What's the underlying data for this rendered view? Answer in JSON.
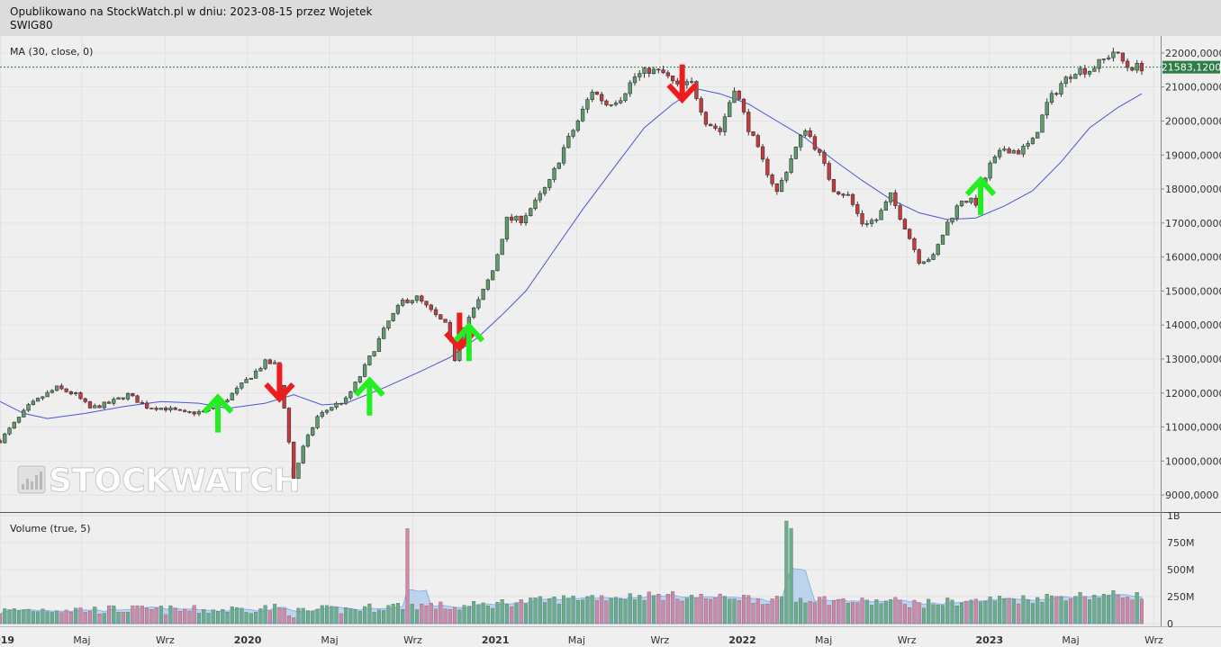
{
  "header": {
    "publish_line": "Opublikowano na StockWatch.pl w dniu: 2023-08-15 przez Wojetek",
    "ticker": "SWIG80"
  },
  "watermark": {
    "text": "STOCKWATCH"
  },
  "price_panel": {
    "indicator_label": "MA (30, close, 0)"
  },
  "volume_panel": {
    "indicator_label": "Volume (true, 5)"
  },
  "colors": {
    "up_candle": "#5e9e6e",
    "down_candle": "#c9393d",
    "ma_line": "#4a55d6",
    "buy_arrow": "#22ee22",
    "sell_arrow": "#ee1c1c",
    "last_price_bg": "#2e7d46",
    "volume_up": "#68b08a",
    "volume_down": "#d487a5",
    "volume_ma_fill": "#a9c7ee"
  },
  "chart_data": {
    "type": "candlestick",
    "instrument": "SWIG80",
    "period": "weekly",
    "price_axis": {
      "min": 8500,
      "max": 22500,
      "ticks": [
        9000,
        10000,
        11000,
        12000,
        13000,
        14000,
        15000,
        16000,
        17000,
        18000,
        19000,
        20000,
        21000,
        22000
      ],
      "tick_labels": [
        "9000,0000",
        "10000,0000",
        "11000,0000",
        "12000,0000",
        "13000,0000",
        "14000,0000",
        "15000,0000",
        "16000,0000",
        "17000,0000",
        "18000,0000",
        "19000,0000",
        "20000,0000",
        "21000,0000",
        "22000,0000"
      ],
      "last_price": 21583.12,
      "last_price_label": "21583,1200"
    },
    "volume_axis": {
      "min": 0,
      "max": 1000,
      "ticks": [
        0,
        250,
        500,
        750,
        1000
      ],
      "tick_labels": [
        "0",
        "250M",
        "500M",
        "750M",
        "1B"
      ]
    },
    "time_axis": {
      "start": "2018-12-31",
      "end": "2023-09-11",
      "ticks": [
        {
          "date": "2019-01-01",
          "label": "2019",
          "major": true
        },
        {
          "date": "2019-05-01",
          "label": "Maj",
          "major": false
        },
        {
          "date": "2019-09-01",
          "label": "Wrz",
          "major": false
        },
        {
          "date": "2020-01-01",
          "label": "2020",
          "major": true
        },
        {
          "date": "2020-05-01",
          "label": "Maj",
          "major": false
        },
        {
          "date": "2020-09-01",
          "label": "Wrz",
          "major": false
        },
        {
          "date": "2021-01-01",
          "label": "2021",
          "major": true
        },
        {
          "date": "2021-05-01",
          "label": "Maj",
          "major": false
        },
        {
          "date": "2021-09-01",
          "label": "Wrz",
          "major": false
        },
        {
          "date": "2022-01-01",
          "label": "2022",
          "major": true
        },
        {
          "date": "2022-05-01",
          "label": "Maj",
          "major": false
        },
        {
          "date": "2022-09-01",
          "label": "Wrz",
          "major": false
        },
        {
          "date": "2023-01-01",
          "label": "2023",
          "major": true
        },
        {
          "date": "2023-05-01",
          "label": "Maj",
          "major": false
        },
        {
          "date": "2023-09-01",
          "label": "Wrz",
          "major": false
        }
      ]
    },
    "close_series": [
      [
        "2018-12-31",
        10600
      ],
      [
        "2019-01-21",
        11100
      ],
      [
        "2019-02-11",
        11600
      ],
      [
        "2019-03-04",
        11900
      ],
      [
        "2019-03-25",
        12150
      ],
      [
        "2019-04-22",
        11950
      ],
      [
        "2019-05-13",
        11550
      ],
      [
        "2019-06-10",
        11700
      ],
      [
        "2019-07-08",
        11950
      ],
      [
        "2019-08-05",
        11600
      ],
      [
        "2019-09-02",
        11550
      ],
      [
        "2019-09-30",
        11400
      ],
      [
        "2019-10-28",
        11450
      ],
      [
        "2019-11-25",
        11700
      ],
      [
        "2019-12-16",
        12100
      ],
      [
        "2020-01-06",
        12500
      ],
      [
        "2020-01-27",
        12900
      ],
      [
        "2020-02-10",
        12850
      ],
      [
        "2020-02-24",
        11600
      ],
      [
        "2020-03-09",
        9500
      ],
      [
        "2020-03-23",
        10400
      ],
      [
        "2020-04-13",
        11300
      ],
      [
        "2020-05-04",
        11600
      ],
      [
        "2020-05-25",
        11800
      ],
      [
        "2020-06-15",
        12500
      ],
      [
        "2020-07-06",
        13300
      ],
      [
        "2020-07-27",
        14100
      ],
      [
        "2020-08-17",
        14700
      ],
      [
        "2020-09-07",
        14800
      ],
      [
        "2020-09-28",
        14400
      ],
      [
        "2020-10-19",
        14000
      ],
      [
        "2020-11-02",
        13000
      ],
      [
        "2020-11-16",
        14000
      ],
      [
        "2020-12-07",
        14700
      ],
      [
        "2020-12-28",
        15600
      ],
      [
        "2021-01-18",
        17100
      ],
      [
        "2021-02-08",
        17100
      ],
      [
        "2021-03-01",
        17600
      ],
      [
        "2021-03-22",
        18200
      ],
      [
        "2021-04-12",
        19200
      ],
      [
        "2021-05-03",
        20000
      ],
      [
        "2021-05-24",
        20900
      ],
      [
        "2021-06-14",
        20500
      ],
      [
        "2021-07-05",
        20700
      ],
      [
        "2021-07-26",
        21300
      ],
      [
        "2021-08-16",
        21500
      ],
      [
        "2021-09-06",
        21400
      ],
      [
        "2021-09-27",
        21000
      ],
      [
        "2021-10-18",
        21100
      ],
      [
        "2021-11-08",
        20000
      ],
      [
        "2021-11-29",
        19700
      ],
      [
        "2021-12-20",
        21000
      ],
      [
        "2022-01-10",
        19800
      ],
      [
        "2022-01-31",
        18800
      ],
      [
        "2022-02-21",
        17900
      ],
      [
        "2022-03-14",
        18900
      ],
      [
        "2022-04-04",
        19800
      ],
      [
        "2022-04-25",
        19000
      ],
      [
        "2022-05-16",
        18000
      ],
      [
        "2022-06-06",
        17800
      ],
      [
        "2022-06-27",
        17000
      ],
      [
        "2022-07-18",
        17100
      ],
      [
        "2022-08-08",
        17800
      ],
      [
        "2022-08-29",
        16900
      ],
      [
        "2022-09-19",
        15900
      ],
      [
        "2022-10-10",
        16000
      ],
      [
        "2022-10-31",
        17000
      ],
      [
        "2022-11-21",
        17700
      ],
      [
        "2022-12-12",
        17600
      ],
      [
        "2023-01-02",
        18700
      ],
      [
        "2023-01-23",
        19200
      ],
      [
        "2023-02-13",
        19100
      ],
      [
        "2023-03-06",
        19400
      ],
      [
        "2023-03-27",
        20500
      ],
      [
        "2023-04-17",
        21100
      ],
      [
        "2023-05-08",
        21500
      ],
      [
        "2023-05-29",
        21500
      ],
      [
        "2023-06-19",
        21800
      ],
      [
        "2023-07-03",
        22050
      ],
      [
        "2023-07-24",
        21600
      ],
      [
        "2023-08-14",
        21583
      ]
    ],
    "ma30_series": [
      [
        "2018-12-31",
        11750
      ],
      [
        "2019-02-04",
        11400
      ],
      [
        "2019-03-11",
        11250
      ],
      [
        "2019-05-06",
        11400
      ],
      [
        "2019-07-01",
        11600
      ],
      [
        "2019-08-26",
        11750
      ],
      [
        "2019-10-21",
        11700
      ],
      [
        "2019-12-02",
        11550
      ],
      [
        "2020-01-27",
        11700
      ],
      [
        "2020-03-09",
        11950
      ],
      [
        "2020-04-20",
        11650
      ],
      [
        "2020-05-25",
        11700
      ],
      [
        "2020-07-20",
        12150
      ],
      [
        "2020-09-14",
        12650
      ],
      [
        "2020-10-26",
        13050
      ],
      [
        "2020-12-07",
        13650
      ],
      [
        "2021-01-11",
        14300
      ],
      [
        "2021-02-15",
        15000
      ],
      [
        "2021-03-22",
        16000
      ],
      [
        "2021-05-10",
        17400
      ],
      [
        "2021-06-28",
        18700
      ],
      [
        "2021-08-09",
        19800
      ],
      [
        "2021-09-20",
        20500
      ],
      [
        "2021-10-25",
        20950
      ],
      [
        "2021-11-29",
        20800
      ],
      [
        "2022-01-10",
        20500
      ],
      [
        "2022-02-21",
        20000
      ],
      [
        "2022-04-04",
        19500
      ],
      [
        "2022-05-16",
        18850
      ],
      [
        "2022-06-27",
        18250
      ],
      [
        "2022-08-08",
        17700
      ],
      [
        "2022-09-19",
        17300
      ],
      [
        "2022-10-31",
        17100
      ],
      [
        "2022-12-12",
        17150
      ],
      [
        "2023-01-23",
        17500
      ],
      [
        "2023-03-06",
        17950
      ],
      [
        "2023-04-17",
        18800
      ],
      [
        "2023-05-29",
        19800
      ],
      [
        "2023-07-10",
        20400
      ],
      [
        "2023-08-14",
        20800
      ]
    ],
    "signals": [
      {
        "date": "2019-11-18",
        "type": "buy",
        "price": 11500
      },
      {
        "date": "2020-02-17",
        "type": "sell",
        "price": 12200
      },
      {
        "date": "2020-06-29",
        "type": "buy",
        "price": 12000
      },
      {
        "date": "2020-11-09",
        "type": "sell",
        "price": 13700
      },
      {
        "date": "2020-11-23",
        "type": "buy",
        "price": 13600
      },
      {
        "date": "2021-10-04",
        "type": "sell",
        "price": 21000
      },
      {
        "date": "2022-12-19",
        "type": "buy",
        "price": 17900
      }
    ],
    "volume_spikes": [
      {
        "date": "2020-08-24",
        "value": 880
      },
      {
        "date": "2022-03-07",
        "value": 950
      },
      {
        "date": "2022-03-14",
        "value": 880
      }
    ]
  }
}
